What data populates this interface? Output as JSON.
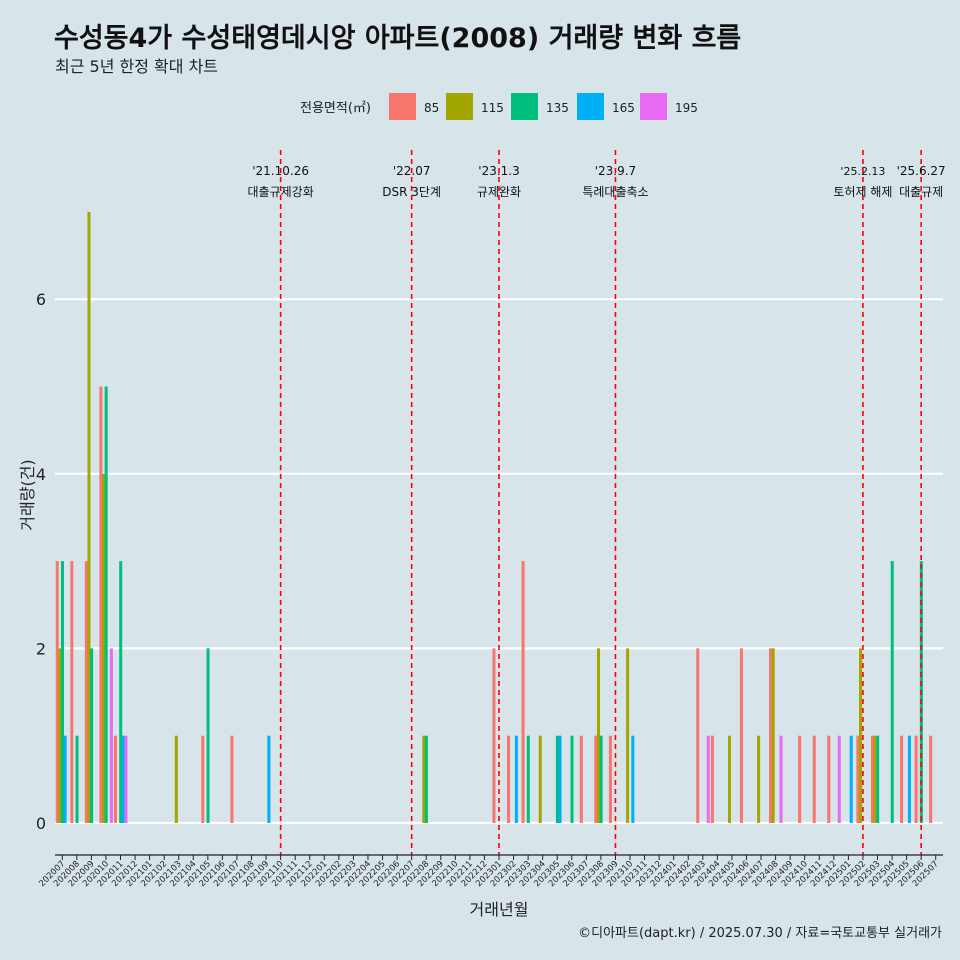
{
  "title": "수성동4가 수성태영데시앙 아파트(2008) 거래량 변화 흐름",
  "subtitle": "최근 5년 한정 확대 차트",
  "caption": "©디아파트(dapt.kr) / 2025.07.30 / 자료=국토교통부 실거래가",
  "colors": {
    "85": "#f8766d",
    "115": "#a3a500",
    "135": "#00bf7d",
    "165": "#00b0f6",
    "195": "#e76bf3",
    "vline": "#ff0000",
    "grid": "#ffffff"
  },
  "chart_data": {
    "type": "bar",
    "xlabel": "거래년월",
    "ylabel": "거래량(건)",
    "ylim": [
      0,
      7
    ],
    "yticks": [
      0,
      2,
      4,
      6
    ],
    "grid": true,
    "legend": {
      "title": "전용면적(㎡)",
      "position": "top",
      "entries": [
        "85",
        "115",
        "135",
        "165",
        "195"
      ]
    },
    "categories": [
      "202007",
      "202008",
      "202009",
      "202010",
      "202011",
      "202012",
      "202101",
      "202102",
      "202103",
      "202104",
      "202105",
      "202106",
      "202107",
      "202108",
      "202109",
      "202110",
      "202111",
      "202112",
      "202201",
      "202202",
      "202203",
      "202204",
      "202205",
      "202206",
      "202207",
      "202208",
      "202209",
      "202210",
      "202211",
      "202212",
      "202301",
      "202302",
      "202303",
      "202304",
      "202305",
      "202306",
      "202307",
      "202308",
      "202309",
      "202310",
      "202311",
      "202312",
      "202401",
      "202402",
      "202403",
      "202404",
      "202405",
      "202406",
      "202407",
      "202408",
      "202409",
      "202410",
      "202411",
      "202412",
      "202501",
      "202502",
      "202503",
      "202504",
      "202505",
      "202506",
      "202507"
    ],
    "series": [
      {
        "name": "85",
        "values": [
          3,
          3,
          3,
          5,
          1,
          0,
          0,
          0,
          0,
          0,
          1,
          0,
          1,
          0,
          0,
          0,
          0,
          0,
          0,
          0,
          0,
          0,
          0,
          0,
          0,
          0,
          0,
          0,
          0,
          0,
          2,
          1,
          3,
          0,
          0,
          0,
          1,
          1,
          1,
          0,
          0,
          0,
          0,
          0,
          2,
          1,
          0,
          2,
          0,
          2,
          0,
          1,
          1,
          1,
          0,
          1,
          1,
          0,
          1,
          1,
          1
        ]
      },
      {
        "name": "115",
        "values": [
          2,
          0,
          7,
          4,
          0,
          0,
          0,
          0,
          1,
          0,
          0,
          0,
          0,
          0,
          0,
          0,
          0,
          0,
          0,
          0,
          0,
          0,
          0,
          0,
          0,
          1,
          0,
          0,
          0,
          0,
          0,
          0,
          0,
          1,
          0,
          0,
          0,
          2,
          0,
          2,
          0,
          0,
          0,
          0,
          0,
          0,
          1,
          0,
          1,
          2,
          0,
          0,
          0,
          0,
          0,
          2,
          1,
          0,
          0,
          0,
          0
        ]
      },
      {
        "name": "135",
        "values": [
          3,
          1,
          2,
          5,
          3,
          0,
          0,
          0,
          0,
          0,
          2,
          0,
          0,
          0,
          0,
          0,
          0,
          0,
          0,
          0,
          0,
          0,
          0,
          0,
          0,
          1,
          0,
          0,
          0,
          0,
          0,
          0,
          1,
          0,
          1,
          1,
          0,
          1,
          0,
          0,
          0,
          0,
          0,
          0,
          0,
          0,
          0,
          0,
          0,
          0,
          0,
          0,
          0,
          0,
          0,
          0,
          1,
          3,
          0,
          3,
          0
        ]
      },
      {
        "name": "165",
        "values": [
          1,
          0,
          0,
          0,
          1,
          0,
          0,
          0,
          0,
          0,
          0,
          0,
          0,
          0,
          1,
          0,
          0,
          0,
          0,
          0,
          0,
          0,
          0,
          0,
          0,
          0,
          0,
          0,
          0,
          0,
          0,
          1,
          0,
          0,
          1,
          0,
          0,
          0,
          0,
          1,
          0,
          0,
          0,
          0,
          0,
          0,
          0,
          0,
          0,
          0,
          0,
          0,
          0,
          0,
          1,
          0,
          0,
          0,
          1,
          0,
          0
        ]
      },
      {
        "name": "195",
        "values": [
          0,
          0,
          0,
          2,
          1,
          0,
          0,
          0,
          0,
          0,
          0,
          0,
          0,
          0,
          0,
          0,
          0,
          0,
          0,
          0,
          0,
          0,
          0,
          0,
          0,
          0,
          0,
          0,
          0,
          0,
          0,
          0,
          0,
          0,
          0,
          0,
          0,
          0,
          0,
          0,
          0,
          0,
          0,
          0,
          1,
          0,
          0,
          0,
          0,
          1,
          0,
          0,
          0,
          1,
          0,
          0,
          0,
          0,
          0,
          0,
          0
        ]
      }
    ],
    "annotations": [
      {
        "x": "202110",
        "date": "'21.10.26",
        "label": "대출규제강화"
      },
      {
        "x": "202207",
        "date": "'22.07",
        "label": "DSR 3단계"
      },
      {
        "x": "202301",
        "date": "'23.1.3",
        "label": "규제완화"
      },
      {
        "x": "202309",
        "date": "'23.9.7",
        "label": "특례대출축소"
      },
      {
        "x": "202502",
        "date": "'25.2.13",
        "label": "토허제 해제"
      },
      {
        "x": "202506",
        "date": "'25.6.27",
        "label": "대출규제"
      }
    ]
  }
}
